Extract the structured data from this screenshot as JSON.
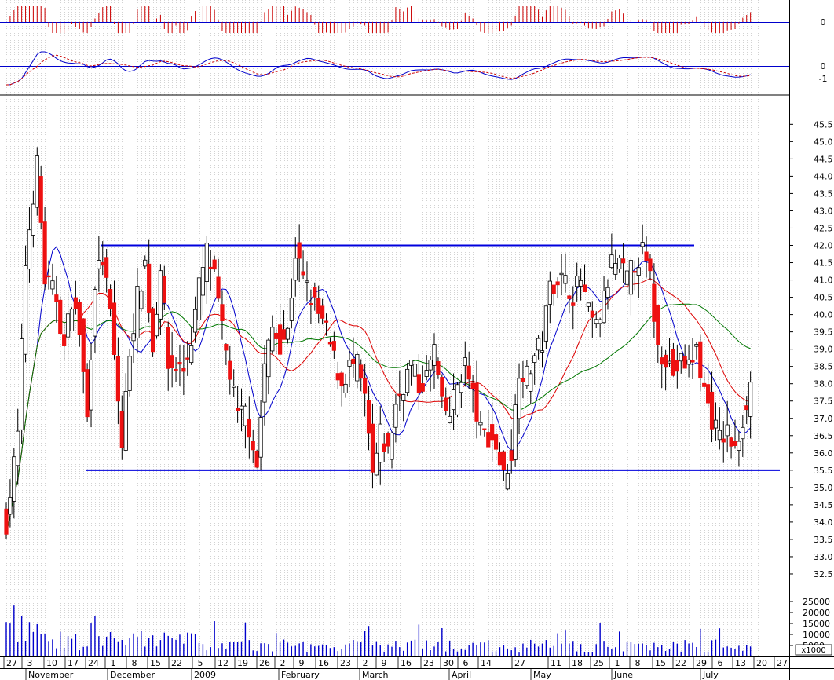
{
  "chart_data": {
    "type": "candlestick",
    "title": "",
    "grid": true,
    "price_axis": {
      "range": [
        32.0,
        46.0
      ],
      "ticks": [
        "32.5",
        "33.0",
        "33.5",
        "34.0",
        "34.5",
        "35.0",
        "35.5",
        "36.0",
        "36.5",
        "37.0",
        "37.5",
        "38.0",
        "38.5",
        "39.0",
        "39.5",
        "40.0",
        "40.5",
        "41.0",
        "41.5",
        "42.0",
        "42.5",
        "43.0",
        "43.5",
        "44.0",
        "44.5",
        "45.0",
        "45.5"
      ]
    },
    "oscillator_panel_1": {
      "type": "histogram",
      "tick_labels": [
        "0"
      ]
    },
    "oscillator_panel_2": {
      "type": "line",
      "tick_labels": [
        "0",
        "-1"
      ],
      "series": [
        "main",
        "signal (dashed)"
      ]
    },
    "volume_panel": {
      "ticks": [
        "25000",
        "20000",
        "15000",
        "10000",
        "5000"
      ],
      "unit_label": "x1000",
      "range": [
        0,
        27000
      ]
    },
    "x_axis": {
      "day_labels": [
        "27",
        "3",
        "10",
        "17",
        "24",
        "1",
        "8",
        "15",
        "22",
        "5",
        "12",
        "19",
        "26",
        "2",
        "9",
        "16",
        "23",
        "2",
        "9",
        "16",
        "23",
        "30",
        "6",
        "14",
        "27",
        "11",
        "18",
        "25",
        "1",
        "8",
        "15",
        "22",
        "29",
        "6",
        "13",
        "20",
        "27"
      ],
      "month_labels": [
        "November",
        "December",
        "2009",
        "February",
        "March",
        "April",
        "May",
        "June",
        "July"
      ]
    },
    "trend_lines": [
      {
        "name": "resistance",
        "value": 42.0,
        "from": "Nov 24",
        "to": "Jun 23"
      },
      {
        "name": "support",
        "value": 35.5,
        "from": "Nov 24",
        "to": "Jul 27"
      }
    ],
    "moving_averages": [
      "blue (short)",
      "red (medium)",
      "green (long)"
    ],
    "colors": {
      "up_candle": "#ffffff",
      "down_candle": "#ee1111",
      "trend_line": "#0000dd",
      "ma_short": "#0000cc",
      "ma_medium": "#dd0000",
      "ma_long": "#007700",
      "volume": "#0000cc",
      "histogram": "#cc0000",
      "grid": "#b4b4b4"
    }
  }
}
